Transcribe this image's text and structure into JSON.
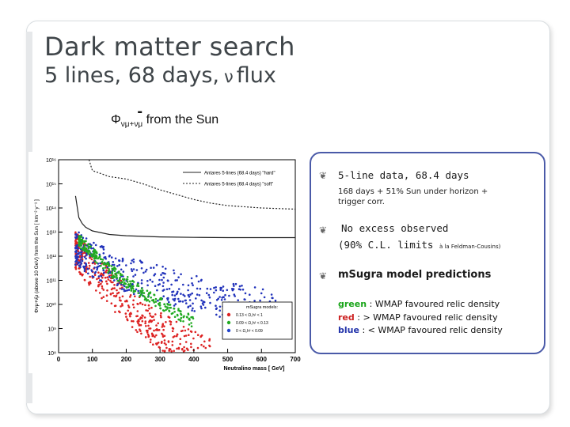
{
  "slide": {
    "title": "Dark matter search",
    "subtitle_pre": "5 lines, 68 days,",
    "subtitle_nu": "ν",
    "subtitle_post": "flux",
    "flux_phi": "Φ",
    "flux_sub1": "νμ+ν",
    "flux_sub2": "μ",
    "flux_bar": "-",
    "flux_tail": "from the Sun"
  },
  "panel": {
    "bullet_icon": "fleuron-bullet-icon",
    "b1": "5-line data, 68.4 days",
    "b1_sub1": "168 days + 51% Sun under horizon +",
    "b1_sub2": "trigger corr.",
    "b2_l1": "No excess observed",
    "b2_l2": "(90% C.L. limits",
    "b2_l2_small": "à la Feldman-Cousins)",
    "b3": "mSugra model predictions",
    "g_word": "green",
    "g_rest": ": WMAP favoured relic density",
    "r_word": "red",
    "r_rest": ": > WMAP favoured relic density",
    "bl_word": "blue",
    "bl_rest": ": < WMAP favoured relic density"
  },
  "colors": {
    "green": "#1aa51a",
    "red": "#cc2222",
    "blue": "#2233aa",
    "panel_border": "#4a5aa8",
    "title": "#3f4549"
  },
  "chart_data": {
    "type": "scatter",
    "xlabel": "Neutralino mass  [ GeV]",
    "ylabel": "Φνμ+ν̄μ (above 10 GeV) from the Sun [ km⁻² y⁻¹ ]",
    "xlim": [
      0,
      700
    ],
    "ylim_log10": [
      8,
      16
    ],
    "x_ticks": [
      "0",
      "100",
      "200",
      "300",
      "400",
      "500",
      "600",
      "700"
    ],
    "y_ticks": [
      "10⁸",
      "10⁹",
      "10¹⁰",
      "10¹¹",
      "10¹²",
      "10¹³",
      "10¹⁴",
      "10¹⁵",
      "10¹⁶"
    ],
    "series": [
      {
        "name": "Antares 5-lines (68.4 days) \"hard\"",
        "style": "solid",
        "x": [
          50,
          60,
          70,
          80,
          100,
          150,
          200,
          300,
          400,
          500,
          600,
          700
        ],
        "log10_y": [
          14.5,
          13.6,
          13.35,
          13.2,
          13.05,
          12.9,
          12.85,
          12.8,
          12.78,
          12.77,
          12.77,
          12.77
        ]
      },
      {
        "name": "Antares 5-lines (68.4 days) \"soft\"",
        "style": "dotted",
        "x": [
          90,
          100,
          150,
          200,
          250,
          300,
          350,
          400,
          450,
          500,
          600,
          700
        ],
        "log10_y": [
          16,
          15.55,
          15.3,
          15.2,
          15.0,
          14.75,
          14.55,
          14.35,
          14.2,
          14.1,
          14.0,
          13.95
        ]
      }
    ],
    "legend_box": {
      "title": "mSugra models:",
      "entries": [
        "0.13 < Ω꜀h² < 1",
        "0.09 < Ω꜀h² < 0.13",
        "0 < Ω꜀h² < 0.09"
      ],
      "colors": [
        "#dd2222",
        "#22aa22",
        "#2244cc"
      ]
    },
    "scatter_bands": [
      {
        "name": "red",
        "color": "#dd2222",
        "upper_log10": [
          [
            50,
            13.0
          ],
          [
            100,
            12.2
          ],
          [
            150,
            11.5
          ],
          [
            200,
            10.8
          ],
          [
            250,
            10.2
          ],
          [
            300,
            9.7
          ],
          [
            350,
            9.3
          ],
          [
            400,
            8.9
          ],
          [
            450,
            8.6
          ]
        ],
        "width_log10": 1.6
      },
      {
        "name": "blue",
        "color": "#2233bb",
        "upper_log10": [
          [
            50,
            13.1
          ],
          [
            100,
            12.6
          ],
          [
            200,
            12.0
          ],
          [
            300,
            11.6
          ],
          [
            400,
            11.2
          ],
          [
            500,
            10.9
          ],
          [
            600,
            10.7
          ],
          [
            650,
            10.5
          ]
        ],
        "width_log10": 1.5
      },
      {
        "name": "green",
        "color": "#22aa22",
        "upper_log10": [
          [
            60,
            12.9
          ],
          [
            100,
            12.4
          ],
          [
            150,
            11.7
          ],
          [
            200,
            11.2
          ],
          [
            250,
            10.7
          ],
          [
            300,
            10.3
          ],
          [
            350,
            9.9
          ],
          [
            400,
            9.5
          ]
        ],
        "width_log10": 0.5
      }
    ],
    "grid": false,
    "legend_position": "top-right"
  }
}
